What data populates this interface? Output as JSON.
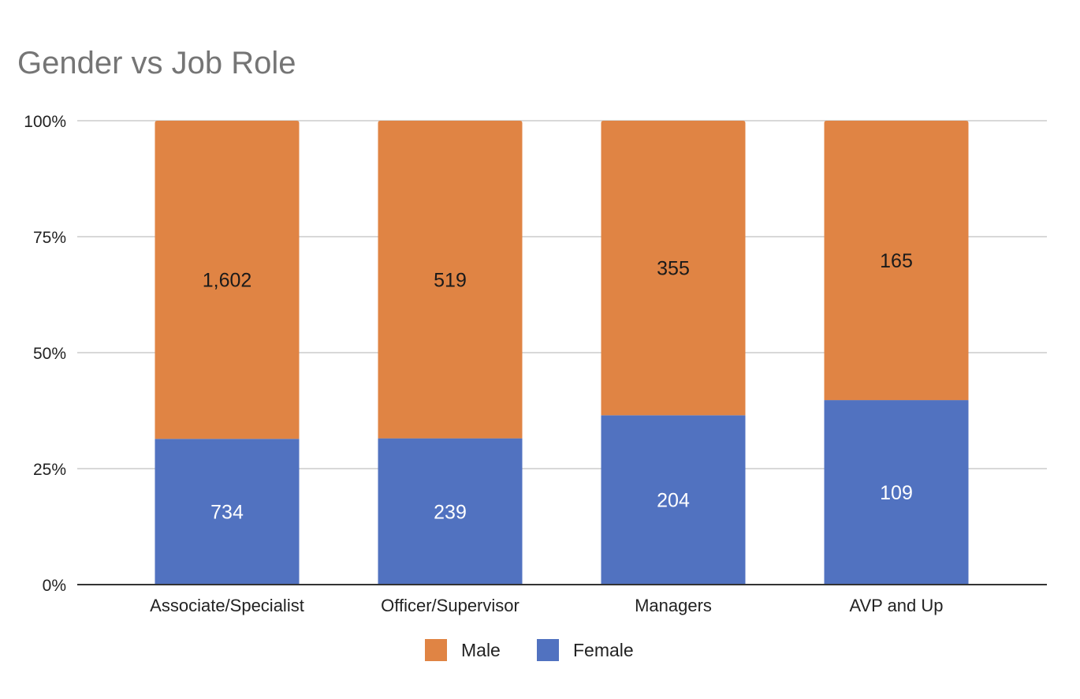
{
  "chart_data": {
    "type": "bar",
    "stacked": "percent",
    "title": "Gender vs Job Role",
    "categories": [
      "Associate/Specialist",
      "Officer/Supervisor",
      "Managers",
      "AVP and Up"
    ],
    "series": [
      {
        "name": "Female",
        "values": [
          734,
          239,
          204,
          109
        ],
        "color": "#5172C0"
      },
      {
        "name": "Male",
        "values": [
          1602,
          519,
          355,
          165
        ],
        "color": "#E08444"
      }
    ],
    "yticks": [
      "0%",
      "25%",
      "50%",
      "75%",
      "100%"
    ],
    "ylim": [
      0,
      100
    ],
    "grid": true,
    "legend_position": "bottom",
    "legend_order": [
      "Male",
      "Female"
    ],
    "gridline_color": "#CCCCCC",
    "axis_color": "#333333"
  }
}
